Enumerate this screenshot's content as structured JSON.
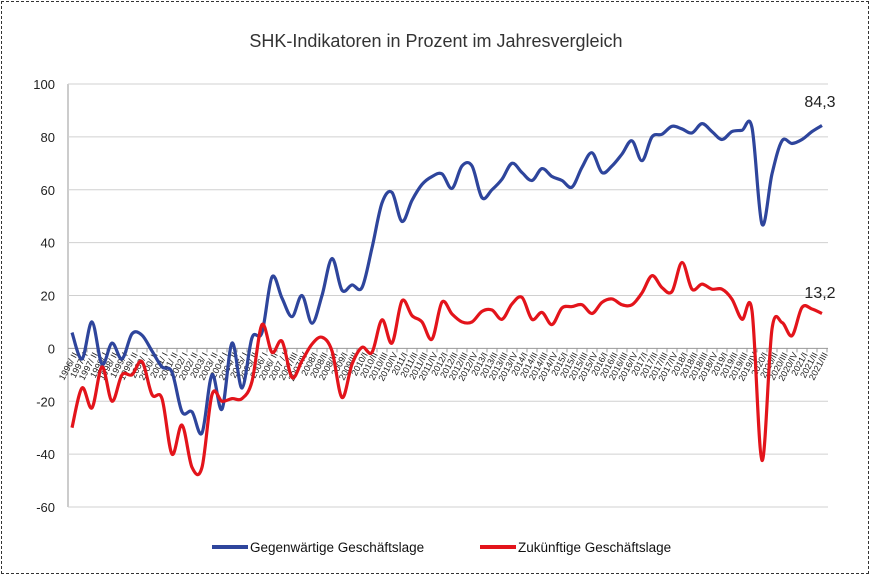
{
  "chart_data": {
    "type": "line",
    "title": "SHK-Indikatoren in Prozent im Jahresvergleich",
    "xlabel": "",
    "ylabel": "",
    "ylim": [
      -60,
      100
    ],
    "yticks": [
      -60,
      -40,
      -20,
      0,
      20,
      40,
      60,
      80,
      100
    ],
    "grid": true,
    "legend_position": "bottom",
    "categories": [
      "1996/ II",
      "1997/ I",
      "1997/ II",
      "1998/ I",
      "1998/ II",
      "1999/ I",
      "1999/ II",
      "2000/ I",
      "2000/ II",
      "2001/ I",
      "2001/ II",
      "2002/ I",
      "2002/ II",
      "2003/ I",
      "2003/ II",
      "2004/ I",
      "2004/ II",
      "2005/ I",
      "2005/ II",
      "2006/ I",
      "2006/ II",
      "2007 / I",
      "2007/III",
      "2007/IV",
      "2008/I",
      "2008/II",
      "2008/III",
      "2009/I",
      "2009/III",
      "2010/I",
      "2010/II",
      "2010/III",
      "2010/IV",
      "2011/I",
      "2011/II",
      "2011/III",
      "2011/IV",
      "2012/I",
      "2012/II",
      "2012/III",
      "2012/IV",
      "2013/I",
      "2013/II",
      "2013/III",
      "2013/IV",
      "2014/I",
      "2014/II",
      "2014/III",
      "2014/IV",
      "2015/I",
      "2015/II",
      "2015/III",
      "2015/IV",
      "2016/I",
      "2016/II",
      "2016/III",
      "2016/IV",
      "2017/I",
      "2017/II",
      "2017/III",
      "2017/IV",
      "2018/I",
      "2018/II",
      "2018/III",
      "2018/IV",
      "2019/I",
      "2019/II",
      "2019/III",
      "2019/IV",
      "2020/I",
      "2020/II",
      "2020/III",
      "2020/IV",
      "2021/I",
      "2021/II",
      "2021/III"
    ],
    "series": [
      {
        "name": "Gegenwärtige Geschäftslage",
        "color": "#2e459c",
        "end_label": "84,3",
        "values": [
          6,
          -4,
          10,
          -6,
          2,
          -4,
          5.5,
          5,
          -1,
          -7,
          -9,
          -24,
          -24,
          -32,
          -10,
          -23,
          2,
          -15,
          4,
          6,
          27,
          19,
          12,
          20,
          9.5,
          20,
          34,
          22,
          24,
          23,
          38,
          55,
          59,
          48,
          56,
          62,
          65,
          66,
          60.5,
          69,
          69,
          57,
          60,
          64,
          70,
          66.5,
          63.5,
          68,
          65,
          63.5,
          61,
          68.5,
          74,
          66.5,
          69,
          73.5,
          78.5,
          71,
          80,
          81,
          84,
          83,
          81.5,
          85,
          82,
          79,
          82,
          82.5,
          83.5,
          47,
          66,
          78.5,
          77.5,
          79,
          82,
          84.3
        ]
      },
      {
        "name": "Zukünftige Geschäftslage",
        "color": "#e3141b",
        "end_label": "13,2",
        "values": [
          -30,
          -15,
          -22.5,
          -7,
          -20,
          -10,
          -10,
          -5,
          -17.5,
          -19,
          -40,
          -29,
          -45,
          -45,
          -17.5,
          -20,
          -19,
          -19,
          -12.5,
          9,
          -1.5,
          2.7,
          -11,
          -4.7,
          1.6,
          4.2,
          -1,
          -18.6,
          -6,
          0.4,
          -1.5,
          10.8,
          2,
          18,
          12.4,
          10,
          3.5,
          17.5,
          13,
          10,
          10,
          14,
          14.5,
          11,
          16.8,
          19.3,
          11,
          13.6,
          9,
          15.3,
          15.8,
          16.5,
          13.2,
          17.4,
          18.7,
          16.5,
          16.5,
          21,
          27.5,
          23,
          21.5,
          32.5,
          22.4,
          24.3,
          22.4,
          22.4,
          18.6,
          11,
          14.2,
          -42.4,
          7.3,
          9.8,
          4.8,
          15.5,
          14.9,
          13.2
        ]
      }
    ]
  }
}
